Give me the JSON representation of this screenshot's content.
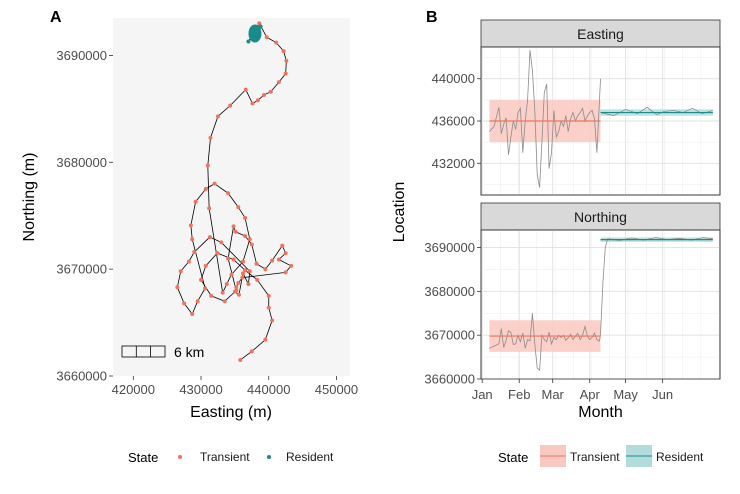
{
  "panel_a": {
    "label": "A",
    "scale_bar_label": "6 km",
    "legend": {
      "title": "State",
      "items": [
        "Transient",
        "Resident"
      ]
    }
  },
  "panel_b": {
    "label": "B",
    "legend": {
      "title": "State",
      "items": [
        "Transient",
        "Resident"
      ]
    }
  },
  "colors": {
    "transient": "#f0735e",
    "resident": "#1a8a8a",
    "track": "#000000",
    "raw": "#8c8c8c",
    "panel_bg": "#f5f5f5",
    "strip_bg": "#d9d9d9",
    "transient_band": "#f9c8c0",
    "resident_band": "#b2dcdc"
  },
  "chart_data": [
    {
      "type": "scatter",
      "id": "A",
      "title": "",
      "xlabel": "Easting (m)",
      "ylabel": "Northing (m)",
      "xlim": [
        417000,
        452000
      ],
      "ylim": [
        3660000,
        3693500
      ],
      "xticks": [
        420000,
        430000,
        440000,
        450000
      ],
      "xtick_labels": [
        "420000",
        "430000",
        "440000",
        "450000"
      ],
      "yticks": [
        3660000,
        3670000,
        3680000,
        3690000
      ],
      "ytick_labels": [
        "3660000",
        "3670000",
        "3680000",
        "3690000"
      ],
      "grid": false,
      "legend_position": "bottom",
      "series": [
        {
          "name": "Transient",
          "points": [
            [
              435800,
              3661500
            ],
            [
              437500,
              3662300
            ],
            [
              439500,
              3663400
            ],
            [
              440500,
              3665200
            ],
            [
              440000,
              3666400
            ],
            [
              440000,
              3667500
            ],
            [
              438300,
              3669000
            ],
            [
              436500,
              3669900
            ],
            [
              434800,
              3670900
            ],
            [
              432400,
              3671500
            ],
            [
              430700,
              3670300
            ],
            [
              430000,
              3669000
            ],
            [
              431500,
              3667500
            ],
            [
              433500,
              3667000
            ],
            [
              435200,
              3668000
            ],
            [
              434000,
              3671000
            ],
            [
              434800,
              3674000
            ],
            [
              435100,
              3673500
            ],
            [
              436500,
              3673100
            ],
            [
              437500,
              3672300
            ],
            [
              438200,
              3670500
            ],
            [
              439500,
              3670000
            ],
            [
              440500,
              3670800
            ],
            [
              442000,
              3672200
            ],
            [
              442500,
              3671500
            ],
            [
              441500,
              3670900
            ],
            [
              443300,
              3670300
            ],
            [
              442500,
              3669700
            ],
            [
              436100,
              3669200
            ],
            [
              435500,
              3668700
            ],
            [
              435200,
              3668300
            ],
            [
              435000,
              3667900
            ],
            [
              435600,
              3667600
            ],
            [
              436200,
              3669600
            ],
            [
              437000,
              3668600
            ],
            [
              437200,
              3669800
            ],
            [
              433000,
              3672500
            ],
            [
              431300,
              3673000
            ],
            [
              429000,
              3671600
            ],
            [
              428200,
              3670700
            ],
            [
              427000,
              3669800
            ],
            [
              426500,
              3668300
            ],
            [
              427500,
              3666800
            ],
            [
              428700,
              3665800
            ],
            [
              429500,
              3667000
            ],
            [
              430600,
              3668200
            ],
            [
              428700,
              3672800
            ],
            [
              428500,
              3674100
            ],
            [
              429200,
              3676300
            ],
            [
              430700,
              3677500
            ],
            [
              432000,
              3678000
            ],
            [
              434000,
              3677100
            ],
            [
              435500,
              3675800
            ],
            [
              436500,
              3674800
            ],
            [
              437200,
              3672800
            ],
            [
              436200,
              3670700
            ],
            [
              434500,
              3669500
            ],
            [
              433800,
              3668600
            ],
            [
              433200,
              3667800
            ],
            [
              431200,
              3675700
            ],
            [
              431000,
              3679700
            ],
            [
              431400,
              3682300
            ],
            [
              432500,
              3684300
            ],
            [
              434300,
              3685300
            ],
            [
              436600,
              3686800
            ],
            [
              437600,
              3685500
            ],
            [
              438400,
              3685800
            ],
            [
              439300,
              3686300
            ],
            [
              440300,
              3686600
            ],
            [
              441500,
              3687500
            ],
            [
              442500,
              3688300
            ],
            [
              442600,
              3689500
            ],
            [
              442200,
              3690400
            ],
            [
              441100,
              3691200
            ],
            [
              439700,
              3691700
            ],
            [
              438600,
              3693000
            ]
          ]
        },
        {
          "name": "Resident",
          "points": [
            [
              437000,
              3691300
            ],
            [
              437500,
              3691600
            ],
            [
              437800,
              3692000
            ],
            [
              438200,
              3692200
            ],
            [
              438500,
              3692500
            ],
            [
              438800,
              3692700
            ]
          ]
        }
      ]
    },
    {
      "type": "line",
      "id": "B-Easting",
      "title": "Easting",
      "xlabel": "Month",
      "ylabel": "Location",
      "xticks": [
        "Jan",
        "Feb",
        "Mar",
        "Apr",
        "May",
        "Jun"
      ],
      "xlim_days": [
        -1,
        199
      ],
      "ylim": [
        429000,
        443000
      ],
      "yticks": [
        432000,
        436000,
        440000
      ],
      "ytick_labels": [
        "432000",
        "436000",
        "440000"
      ],
      "states": [
        {
          "name": "Transient",
          "start_day": 6,
          "end_day": 99,
          "mean": 436000,
          "lower": 434000,
          "upper": 438000
        },
        {
          "name": "Resident",
          "start_day": 99,
          "end_day": 193,
          "mean": 436800,
          "lower": 436500,
          "upper": 437100
        }
      ],
      "raw_series": {
        "name": "",
        "x_days": [
          6,
          10,
          14,
          16,
          18,
          20,
          22,
          24,
          26,
          28,
          30,
          32,
          34,
          36,
          38,
          40,
          42,
          44,
          46,
          48,
          50,
          52,
          54,
          56,
          58,
          60,
          62,
          64,
          66,
          68,
          70,
          72,
          74,
          76,
          78,
          80,
          82,
          84,
          86,
          88,
          90,
          92,
          94,
          96,
          98,
          99
        ],
        "values": [
          435000,
          435500,
          437300,
          434800,
          435700,
          436300,
          432800,
          434500,
          436000,
          435200,
          436800,
          437200,
          433000,
          436000,
          438000,
          442700,
          440800,
          437000,
          431000,
          429700,
          434000,
          438700,
          439500,
          431500,
          433000,
          437000,
          434500,
          435000,
          436000,
          435500,
          436500,
          435000,
          436200,
          436800,
          436000,
          436500,
          436800,
          437200,
          436000,
          436500,
          436800,
          437000,
          436200,
          433000,
          437600,
          440000
        ]
      },
      "resident_raw": {
        "name": "",
        "x_days": [
          99,
          110,
          120,
          130,
          138,
          146,
          152,
          160,
          168,
          176,
          184,
          193
        ],
        "values": [
          436800,
          436500,
          437100,
          436700,
          437300,
          436600,
          436900,
          437000,
          436800,
          437200,
          436700,
          437000
        ]
      }
    },
    {
      "type": "line",
      "id": "B-Northing",
      "title": "Northing",
      "xlabel": "Month",
      "ylabel": "Location",
      "xticks": [
        "Jan",
        "Feb",
        "Mar",
        "Apr",
        "May",
        "Jun"
      ],
      "xlim_days": [
        -1,
        199
      ],
      "ylim": [
        3660000,
        3694000
      ],
      "yticks": [
        3660000,
        3670000,
        3680000,
        3690000
      ],
      "ytick_labels": [
        "3660000",
        "3670000",
        "3680000",
        "3690000"
      ],
      "states": [
        {
          "name": "Transient",
          "start_day": 6,
          "end_day": 99,
          "mean": 3669800,
          "lower": 3666200,
          "upper": 3673400
        },
        {
          "name": "Resident",
          "start_day": 99,
          "end_day": 193,
          "mean": 3691800,
          "lower": 3691300,
          "upper": 3692300
        }
      ],
      "raw_series": {
        "name": "",
        "x_days": [
          6,
          10,
          14,
          16,
          18,
          20,
          22,
          24,
          26,
          28,
          30,
          32,
          34,
          36,
          38,
          40,
          42,
          44,
          46,
          48,
          50,
          52,
          54,
          56,
          58,
          60,
          62,
          64,
          66,
          68,
          70,
          72,
          74,
          76,
          78,
          80,
          82,
          84,
          86,
          88,
          90,
          92,
          94,
          96,
          98,
          99,
          101,
          103,
          105
        ],
        "values": [
          3667000,
          3667500,
          3668000,
          3671500,
          3667200,
          3668800,
          3671000,
          3670600,
          3667900,
          3668000,
          3670000,
          3668500,
          3670500,
          3667000,
          3669000,
          3668700,
          3675000,
          3668000,
          3662500,
          3662000,
          3670000,
          3669000,
          3668500,
          3670700,
          3668000,
          3669500,
          3669000,
          3670000,
          3669500,
          3670000,
          3668800,
          3669400,
          3670200,
          3669000,
          3669800,
          3670400,
          3669000,
          3670000,
          3672000,
          3669800,
          3669000,
          3669500,
          3670500,
          3669000,
          3668600,
          3670000,
          3682000,
          3690000,
          3692000
        ]
      },
      "resident_raw": {
        "name": "",
        "x_days": [
          105,
          115,
          125,
          135,
          145,
          155,
          165,
          175,
          185,
          193
        ],
        "values": [
          3692000,
          3691600,
          3692200,
          3691700,
          3692300,
          3691800,
          3692100,
          3691700,
          3692300,
          3692000
        ]
      }
    }
  ]
}
